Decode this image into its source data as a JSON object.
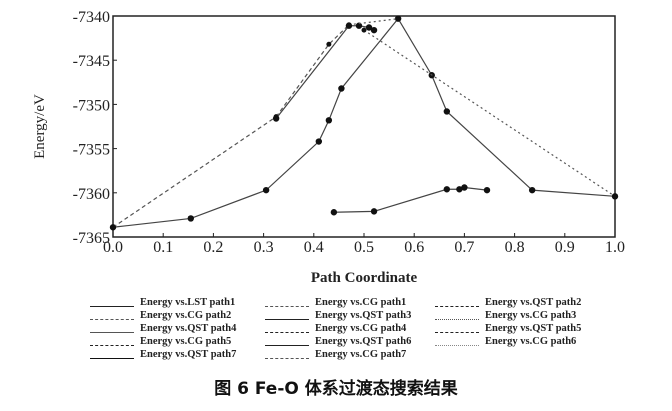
{
  "chart_data": {
    "type": "line",
    "title": "",
    "xlabel": "Path Coordinate",
    "ylabel": "Energy/eV",
    "xlim": [
      0,
      1
    ],
    "ylim": [
      -7365,
      -7340
    ],
    "xticks": [
      "0.0",
      "0.1",
      "0.2",
      "0.3",
      "0.4",
      "0.5",
      "0.6",
      "0.7",
      "0.8",
      "0.9",
      "1.0"
    ],
    "yticks": [
      "-7340",
      "-7345",
      "-7350",
      "-7355",
      "-7360",
      "-7365"
    ],
    "grid": false,
    "legend_position": "bottom",
    "series": [
      {
        "name": "Energy vs.LST path1",
        "style": "solid",
        "x": [
          0,
          0.155,
          0.305,
          0.41,
          0.43,
          0.455,
          0.568,
          0.635,
          0.665,
          0.835,
          1.0
        ],
        "y": [
          -7363.9,
          -7362.9,
          -7359.7,
          -7354.2,
          -7351.8,
          -7348.2,
          -7340.3,
          -7346.7,
          -7350.8,
          -7359.7,
          -7360.4
        ]
      },
      {
        "name": "Energy vs.CG path1",
        "style": "dashed",
        "x": [
          0,
          0.325
        ],
        "y": [
          -7363.9,
          -7351.4
        ]
      },
      {
        "name": "Energy vs.QST path2",
        "style": "dashed",
        "x": [
          0.325,
          0.43,
          0.47
        ],
        "y": [
          -7351.4,
          -7343.2,
          -7341.0
        ]
      },
      {
        "name": "Energy vs.CG path2",
        "style": "solid",
        "x": [
          0.325,
          0.47,
          0.49,
          0.51,
          0.52
        ],
        "y": [
          -7351.6,
          -7341.1,
          -7341.1,
          -7341.3,
          -7341.6
        ]
      },
      {
        "name": "Energy vs.QST path3",
        "style": "dotted",
        "x": [
          0.5,
          1.0
        ],
        "y": [
          -7341.6,
          -7360.4
        ]
      },
      {
        "name": "Energy vs.CG path3",
        "style": "dotted",
        "x": [
          0.47,
          0.568
        ],
        "y": [
          -7341.0,
          -7340.3
        ]
      },
      {
        "name": "Energy vs.QST path4",
        "style": "solid",
        "x": [
          0.44,
          0.52,
          0.665,
          0.69,
          0.7,
          0.745
        ],
        "y": [
          -7362.2,
          -7362.1,
          -7359.6,
          -7359.6,
          -7359.4,
          -7359.7
        ]
      },
      {
        "name": "Energy vs.CG path4",
        "style": "solid",
        "x": [],
        "y": []
      },
      {
        "name": "Energy vs.QST path5",
        "style": "dashed",
        "x": [],
        "y": []
      },
      {
        "name": "Energy vs.CG path5",
        "style": "dashed",
        "x": [],
        "y": []
      },
      {
        "name": "Energy vs.QST path6",
        "style": "solid",
        "x": [],
        "y": []
      },
      {
        "name": "Energy vs.CG path6",
        "style": "dotted",
        "x": [],
        "y": []
      },
      {
        "name": "Energy vs.QST path7",
        "style": "solid",
        "x": [],
        "y": []
      },
      {
        "name": "Energy vs.CG path7",
        "style": "dashed",
        "x": [],
        "y": []
      }
    ]
  },
  "legend": [
    "Energy vs.LST path1",
    "Energy vs.CG path1",
    "Energy vs.QST path2",
    "Energy vs.CG path2",
    "Energy vs.QST path3",
    "Energy vs.CG path3",
    "Energy vs.QST path4",
    "Energy vs.CG path4",
    "Energy vs.QST path5",
    "Energy vs.CG path5",
    "Energy vs.QST path6",
    "Energy vs.CG path6",
    "Energy vs.QST path7",
    "Energy vs.CG path7"
  ],
  "caption": "图 6   Fe-O 体系过渡态搜索结果"
}
